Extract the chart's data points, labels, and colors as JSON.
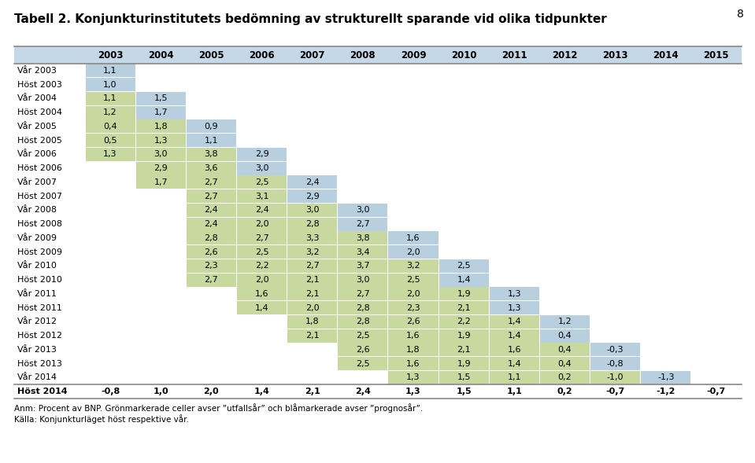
{
  "title": "Tabell 2. Konjunkturinstitutets bedömning av strukturellt sparande vid olika tidpunkter",
  "page_num": "8",
  "col_years": [
    2003,
    2004,
    2005,
    2006,
    2007,
    2008,
    2009,
    2010,
    2011,
    2012,
    2013,
    2014,
    2015
  ],
  "rows": [
    {
      "label": "Vår 2003",
      "data": {
        "2003": "1,1"
      }
    },
    {
      "label": "Höst 2003",
      "data": {
        "2003": "1,0"
      }
    },
    {
      "label": "Vår 2004",
      "data": {
        "2003": "1,1",
        "2004": "1,5"
      }
    },
    {
      "label": "Höst 2004",
      "data": {
        "2003": "1,2",
        "2004": "1,7"
      }
    },
    {
      "label": "Vår 2005",
      "data": {
        "2003": "0,4",
        "2004": "1,8",
        "2005": "0,9"
      }
    },
    {
      "label": "Höst 2005",
      "data": {
        "2003": "0,5",
        "2004": "1,3",
        "2005": "1,1"
      }
    },
    {
      "label": "Vår 2006",
      "data": {
        "2003": "1,3",
        "2004": "3,0",
        "2005": "3,8",
        "2006": "2,9"
      }
    },
    {
      "label": "Höst 2006",
      "data": {
        "2004": "2,9",
        "2005": "3,6",
        "2006": "3,0"
      }
    },
    {
      "label": "Vår 2007",
      "data": {
        "2004": "1,7",
        "2005": "2,7",
        "2006": "2,5",
        "2007": "2,4"
      }
    },
    {
      "label": "Höst 2007",
      "data": {
        "2005": "2,7",
        "2006": "3,1",
        "2007": "2,9"
      }
    },
    {
      "label": "Vår 2008",
      "data": {
        "2005": "2,4",
        "2006": "2,4",
        "2007": "3,0",
        "2008": "3,0"
      }
    },
    {
      "label": "Höst 2008",
      "data": {
        "2005": "2,4",
        "2006": "2,0",
        "2007": "2,8",
        "2008": "2,7"
      }
    },
    {
      "label": "Vår 2009",
      "data": {
        "2005": "2,8",
        "2006": "2,7",
        "2007": "3,3",
        "2008": "3,8",
        "2009": "1,6"
      }
    },
    {
      "label": "Höst 2009",
      "data": {
        "2005": "2,6",
        "2006": "2,5",
        "2007": "3,2",
        "2008": "3,4",
        "2009": "2,0"
      }
    },
    {
      "label": "Vår 2010",
      "data": {
        "2005": "2,3",
        "2006": "2,2",
        "2007": "2,7",
        "2008": "3,7",
        "2009": "3,2",
        "2010": "2,5"
      }
    },
    {
      "label": "Höst 2010",
      "data": {
        "2005": "2,7",
        "2006": "2,0",
        "2007": "2,1",
        "2008": "3,0",
        "2009": "2,5",
        "2010": "1,4"
      }
    },
    {
      "label": "Vår 2011",
      "data": {
        "2006": "1,6",
        "2007": "2,1",
        "2008": "2,7",
        "2009": "2,0",
        "2010": "1,9",
        "2011": "1,3"
      }
    },
    {
      "label": "Höst 2011",
      "data": {
        "2006": "1,4",
        "2007": "2,0",
        "2008": "2,8",
        "2009": "2,3",
        "2010": "2,1",
        "2011": "1,3"
      }
    },
    {
      "label": "Vår 2012",
      "data": {
        "2007": "1,8",
        "2008": "2,8",
        "2009": "2,6",
        "2010": "2,2",
        "2011": "1,4",
        "2012": "1,2"
      }
    },
    {
      "label": "Höst 2012",
      "data": {
        "2007": "2,1",
        "2008": "2,5",
        "2009": "1,6",
        "2010": "1,9",
        "2011": "1,4",
        "2012": "0,4"
      }
    },
    {
      "label": "Vår 2013",
      "data": {
        "2008": "2,6",
        "2009": "1,8",
        "2010": "2,1",
        "2011": "1,6",
        "2012": "0,4",
        "2013": "-0,3"
      }
    },
    {
      "label": "Höst 2013",
      "data": {
        "2008": "2,5",
        "2009": "1,6",
        "2010": "1,9",
        "2011": "1,4",
        "2012": "0,4",
        "2013": "-0,8"
      }
    },
    {
      "label": "Vår 2014",
      "data": {
        "2009": "1,3",
        "2010": "1,5",
        "2011": "1,1",
        "2012": "0,2",
        "2013": "-1,0",
        "2014": "-1,3"
      }
    }
  ],
  "last_row": {
    "label": "Höst 2014",
    "data": {
      "2003": "-0,8",
      "2004": "1,0",
      "2005": "2,0",
      "2006": "1,4",
      "2007": "2,1",
      "2008": "2,4",
      "2009": "1,3",
      "2010": "1,5",
      "2011": "1,1",
      "2012": "0,2",
      "2013": "-0,7",
      "2014": "-1,2",
      "2015": "-0,7"
    }
  },
  "note1": "Anm: Procent av BNP. Grönmarkerade celler avser ”utfallsår” och blåmarkerade avser ”prognosår”.",
  "note2": "Källa: Konjunkturläget höst respektive vår.",
  "green_color": "#c8d9a0",
  "blue_color": "#b8cfe0",
  "header_bg": "#c5d8e8",
  "line_color": "#888888"
}
